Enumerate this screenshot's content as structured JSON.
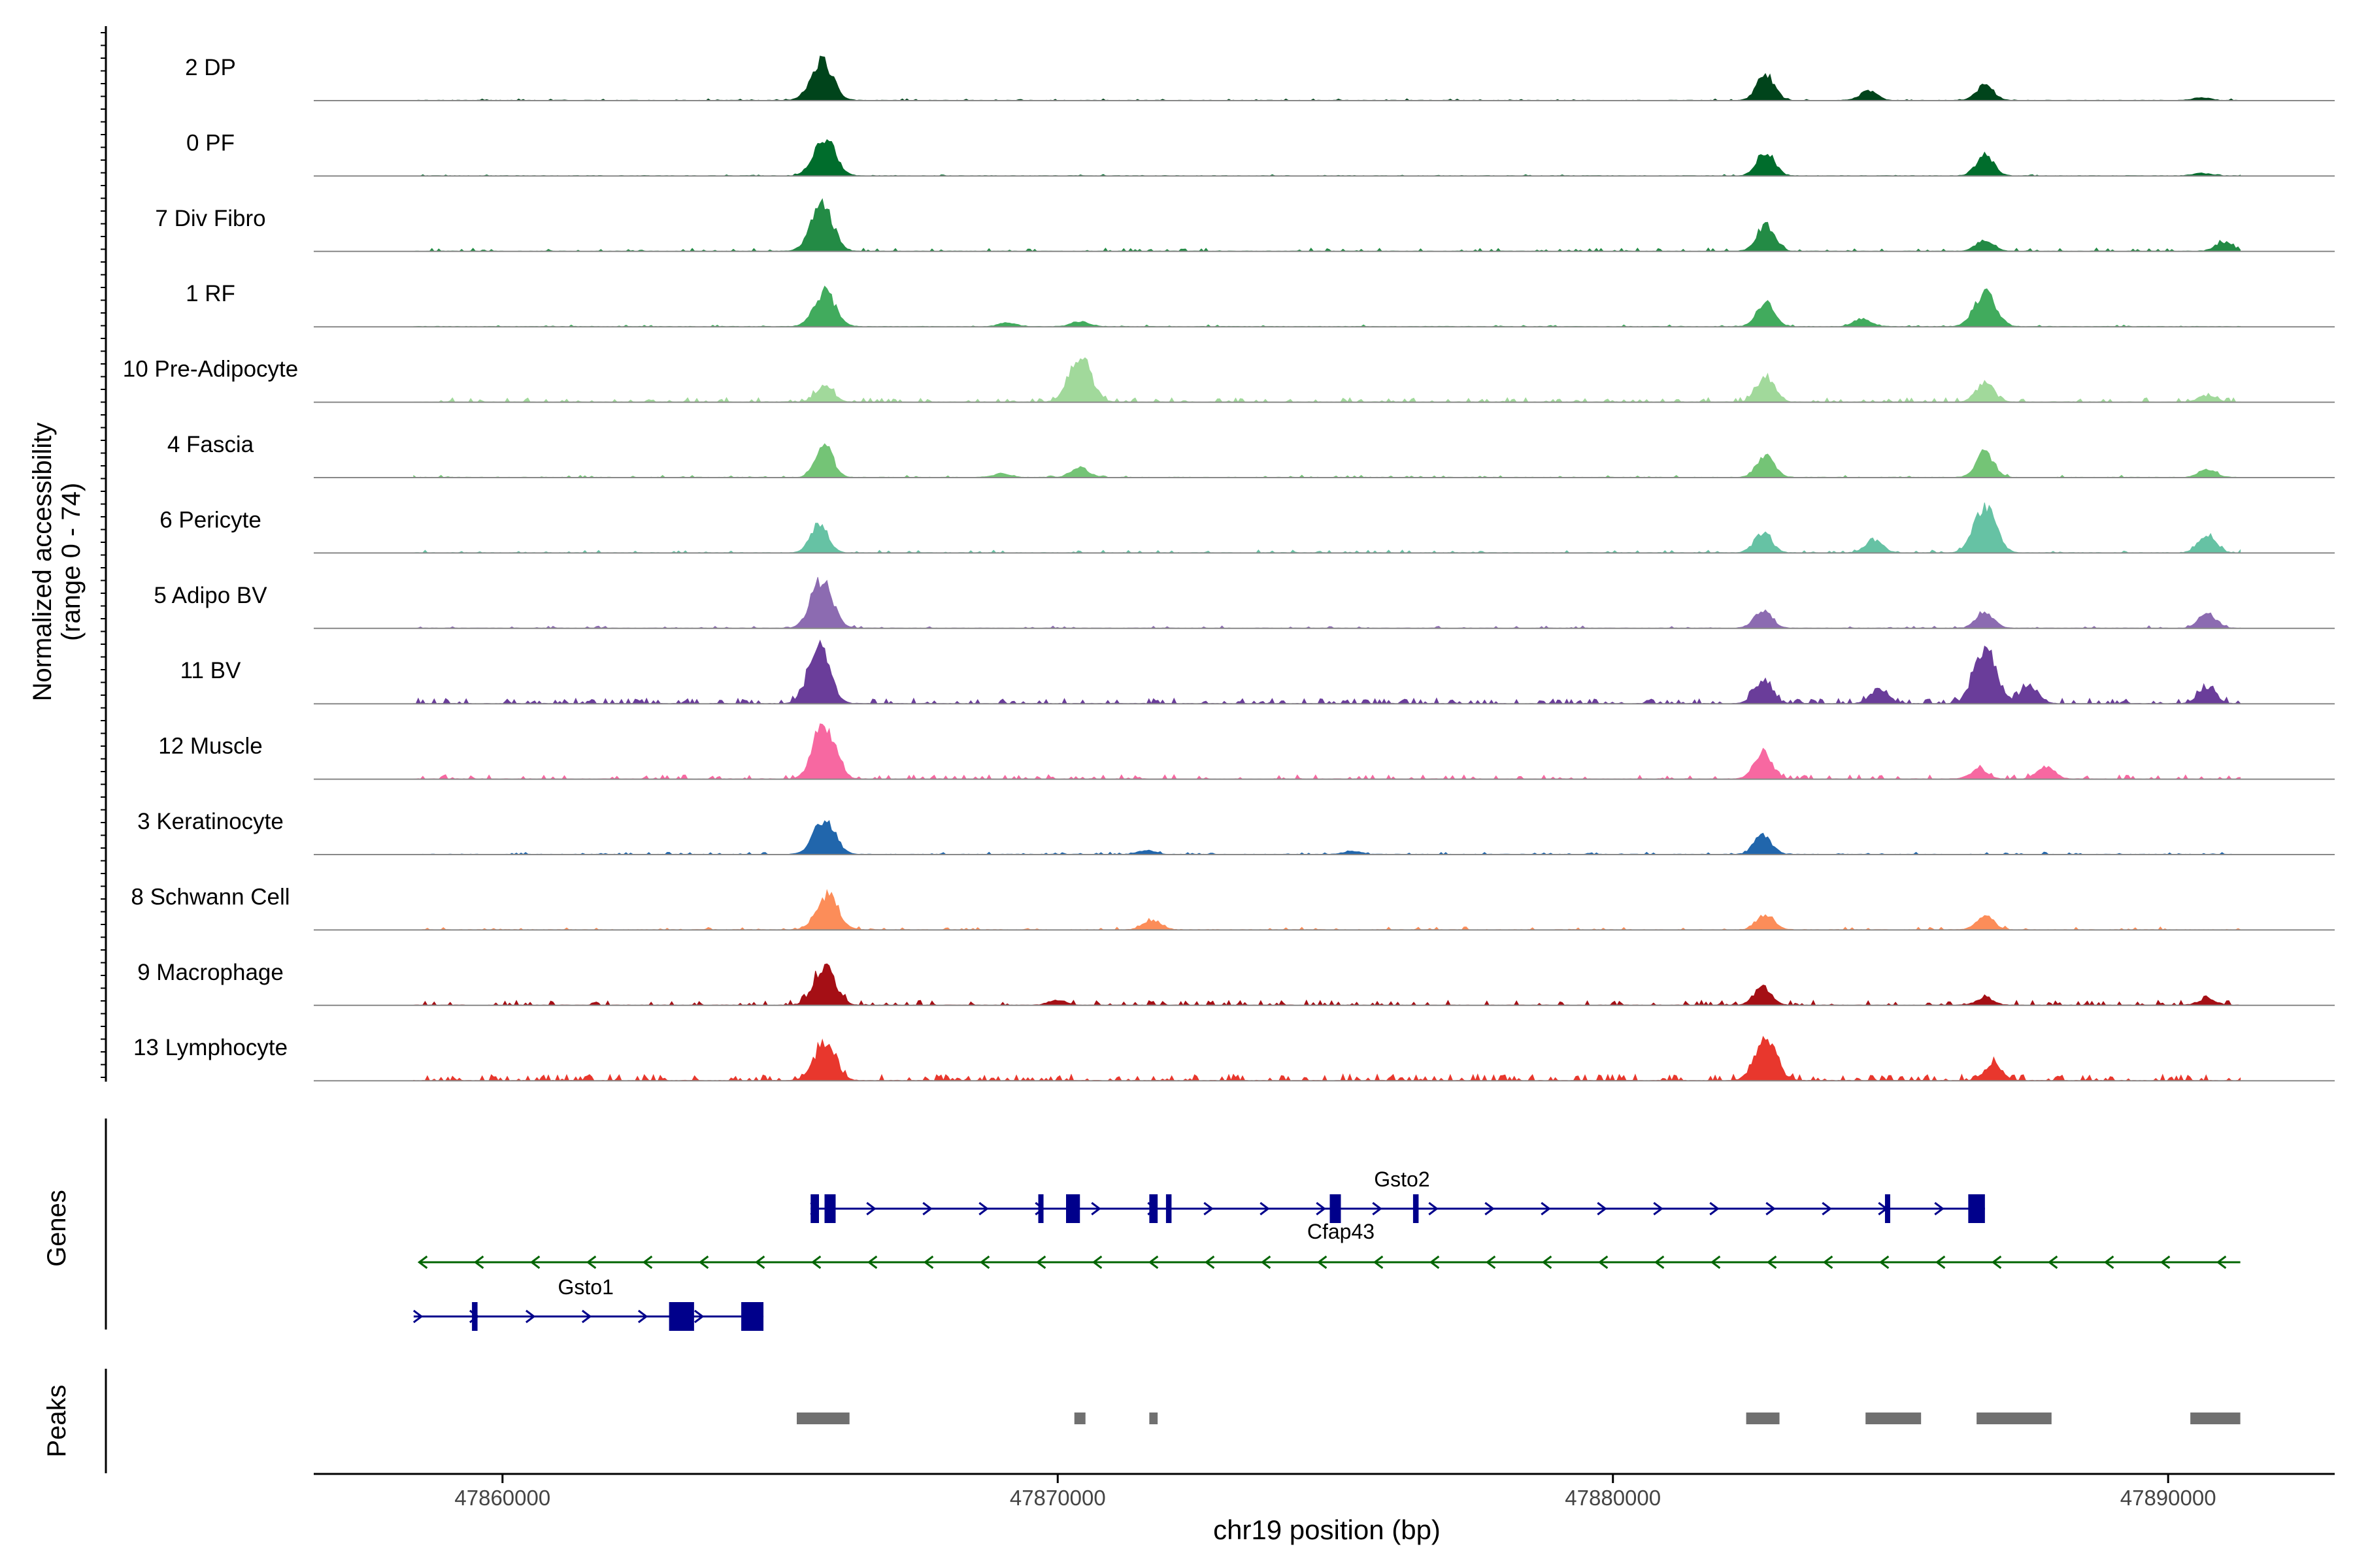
{
  "chart_data": {
    "type": "area",
    "ylabel_line1": "Normalized accessibility",
    "ylabel_line2": "(range 0 - 74)",
    "xlabel": "chr19 position (bp)",
    "xlim": [
      47856600,
      47893000
    ],
    "x_ticks": [
      {
        "value": 47860000,
        "label": "47860000"
      },
      {
        "value": 47870000,
        "label": "47870000"
      },
      {
        "value": 47880000,
        "label": "47880000"
      },
      {
        "value": 47890000,
        "label": "47890000"
      }
    ],
    "track_labels": {
      "genes": "Genes",
      "peaks": "Peaks"
    },
    "tracks": [
      {
        "name": "2 DP",
        "color": "#00441b",
        "peaks": [
          [
            47865750,
            0.62
          ],
          [
            47882750,
            0.4
          ],
          [
            47884600,
            0.14
          ],
          [
            47886700,
            0.24
          ],
          [
            47890600,
            0.04
          ]
        ],
        "noise": 0.03
      },
      {
        "name": "0 PF",
        "color": "#006d2c",
        "peaks": [
          [
            47865800,
            0.6
          ],
          [
            47882750,
            0.38
          ],
          [
            47886700,
            0.32
          ],
          [
            47890600,
            0.04
          ]
        ],
        "noise": 0.02
      },
      {
        "name": "7 Div Fibro",
        "color": "#238b45",
        "peaks": [
          [
            47865750,
            0.72
          ],
          [
            47882750,
            0.42
          ],
          [
            47886700,
            0.18
          ],
          [
            47891000,
            0.14
          ]
        ],
        "noise": 0.06
      },
      {
        "name": "1 RF",
        "color": "#41ab5d",
        "peaks": [
          [
            47865800,
            0.54
          ],
          [
            47869100,
            0.06
          ],
          [
            47870400,
            0.08
          ],
          [
            47882750,
            0.36
          ],
          [
            47884500,
            0.12
          ],
          [
            47886700,
            0.52
          ]
        ],
        "noise": 0.03
      },
      {
        "name": "10 Pre-Adipocyte",
        "color": "#a1d99b",
        "peaks": [
          [
            47865800,
            0.24
          ],
          [
            47870400,
            0.74
          ],
          [
            47882750,
            0.4
          ],
          [
            47886700,
            0.3
          ],
          [
            47890700,
            0.1
          ]
        ],
        "noise": 0.08
      },
      {
        "name": "4 Fascia",
        "color": "#74c476",
        "peaks": [
          [
            47865800,
            0.48
          ],
          [
            47869000,
            0.06
          ],
          [
            47870400,
            0.15
          ],
          [
            47882750,
            0.34
          ],
          [
            47886700,
            0.4
          ],
          [
            47890700,
            0.12
          ]
        ],
        "noise": 0.04
      },
      {
        "name": "6 Pericyte",
        "color": "#66c2a4",
        "peaks": [
          [
            47865700,
            0.46
          ],
          [
            47882700,
            0.3
          ],
          [
            47884700,
            0.2
          ],
          [
            47886700,
            0.72
          ],
          [
            47890700,
            0.28
          ]
        ],
        "noise": 0.05
      },
      {
        "name": "5 Adipo BV",
        "color": "#8c6bb1",
        "peaks": [
          [
            47865750,
            0.76
          ],
          [
            47882700,
            0.28
          ],
          [
            47886700,
            0.26
          ],
          [
            47890700,
            0.22
          ]
        ],
        "noise": 0.04
      },
      {
        "name": "11 BV",
        "color": "#6a3d9a",
        "peaks": [
          [
            47865700,
            0.86
          ],
          [
            47882700,
            0.36
          ],
          [
            47884800,
            0.24
          ],
          [
            47886700,
            0.9
          ],
          [
            47887500,
            0.26
          ],
          [
            47890700,
            0.26
          ]
        ],
        "noise": 0.1
      },
      {
        "name": "12 Muscle",
        "color": "#f768a1",
        "peaks": [
          [
            47865800,
            0.88
          ],
          [
            47882700,
            0.4
          ],
          [
            47886600,
            0.14
          ],
          [
            47887800,
            0.2
          ]
        ],
        "noise": 0.08
      },
      {
        "name": "3 Keratinocyte",
        "color": "#2166ac",
        "peaks": [
          [
            47865800,
            0.56
          ],
          [
            47882700,
            0.3
          ],
          [
            47871600,
            0.06
          ],
          [
            47875300,
            0.05
          ]
        ],
        "noise": 0.04
      },
      {
        "name": "8 Schwann Cell",
        "color": "#fc8d59",
        "peaks": [
          [
            47865850,
            0.54
          ],
          [
            47871700,
            0.15
          ],
          [
            47882750,
            0.24
          ],
          [
            47886700,
            0.22
          ]
        ],
        "noise": 0.05
      },
      {
        "name": "9 Macrophage",
        "color": "#a50f15",
        "peaks": [
          [
            47865800,
            0.58
          ],
          [
            47882700,
            0.28
          ],
          [
            47870000,
            0.08
          ],
          [
            47886700,
            0.1
          ],
          [
            47890700,
            0.1
          ]
        ],
        "noise": 0.09
      },
      {
        "name": "13 Lymphocyte",
        "color": "#e8372d",
        "peaks": [
          [
            47865800,
            0.56
          ],
          [
            47882750,
            0.62
          ],
          [
            47886850,
            0.26
          ]
        ],
        "noise": 0.12
      }
    ],
    "genes": [
      {
        "name": "Gsto2",
        "strand": "+",
        "start": 47865550,
        "end": 47886700,
        "color": "#00008b",
        "exons": [
          [
            47865550,
            47865700
          ],
          [
            47865800,
            47866000
          ],
          [
            47869650,
            47869700
          ],
          [
            47870150,
            47870400
          ],
          [
            47871650,
            47871800
          ],
          [
            47871950,
            47872050
          ],
          [
            47874900,
            47875100
          ],
          [
            47876400,
            47876500
          ],
          [
            47884900,
            47884980
          ],
          [
            47886400,
            47886700
          ]
        ]
      },
      {
        "name": "Cfap43",
        "strand": "-",
        "start": 47858500,
        "end": 47891300,
        "color": "#006400",
        "exons": []
      },
      {
        "name": "Gsto1",
        "strand": "+",
        "start": 47858400,
        "end": 47864700,
        "color": "#00008b",
        "exons": [
          [
            47859450,
            47859550
          ],
          [
            47863000,
            47863450
          ],
          [
            47864300,
            47864700
          ]
        ]
      }
    ],
    "peak_regions": [
      [
        47865300,
        47866250
      ],
      [
        47870300,
        47870500
      ],
      [
        47871650,
        47871800
      ],
      [
        47882400,
        47883000
      ],
      [
        47884550,
        47885550
      ],
      [
        47886550,
        47887900
      ],
      [
        47890400,
        47891300
      ]
    ]
  }
}
